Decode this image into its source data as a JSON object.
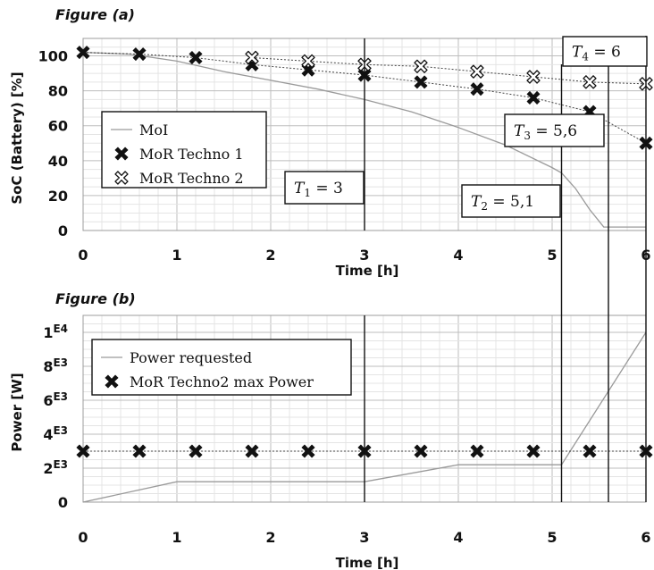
{
  "chart_data": [
    {
      "type": "line",
      "title": "Figure (a)",
      "xlabel": "Time [h]",
      "ylabel": "SoC (Battery) [%]",
      "xlim": [
        0,
        6
      ],
      "ylim": [
        0,
        110
      ],
      "x_ticks": [
        "0",
        "1",
        "2",
        "3",
        "4",
        "5",
        "6"
      ],
      "y_ticks": [
        "0",
        "20",
        "40",
        "60",
        "80",
        "100"
      ],
      "grid": true,
      "legend_position": "middle-left",
      "series": [
        {
          "name": "MoI",
          "style": "line",
          "color": "#9a9a9a",
          "x": [
            0,
            0.5,
            1,
            1.5,
            2,
            2.5,
            3,
            3.5,
            4,
            4.5,
            5,
            5.1,
            5.25,
            5.4,
            5.55,
            5.6,
            6
          ],
          "y": [
            102,
            101,
            97,
            91,
            86,
            81,
            75,
            68,
            59,
            49,
            36,
            33,
            24,
            12,
            2,
            2,
            2
          ]
        },
        {
          "name": "MoR Techno 1",
          "style": "marker",
          "marker": "filled-x",
          "color": "#111111",
          "x": [
            0,
            0.6,
            1.2,
            1.8,
            2.4,
            3.0,
            3.6,
            4.2,
            4.8,
            5.4,
            6.0
          ],
          "y": [
            102,
            101,
            99,
            95,
            92,
            89,
            85,
            81,
            76,
            68,
            50
          ]
        },
        {
          "name": "MoR Techno 2",
          "style": "marker",
          "marker": "hollow-x",
          "color": "#111111",
          "x": [
            1.8,
            2.4,
            3.0,
            3.6,
            4.2,
            4.8,
            5.4,
            6.0
          ],
          "y": [
            99,
            97,
            95,
            94,
            91,
            88,
            85,
            84
          ]
        }
      ],
      "vlines": [
        3,
        5.1,
        5.6,
        6
      ],
      "annotations": [
        {
          "var": "T",
          "sub": "1",
          "rest": " = 3",
          "x": 3
        },
        {
          "var": "T",
          "sub": "2",
          "rest": " = 5,1",
          "x": 5.1
        },
        {
          "var": "T",
          "sub": "3",
          "rest": " = 5,6",
          "x": 5.6
        },
        {
          "var": "T",
          "sub": "4",
          "rest": " = 6",
          "x": 6
        }
      ]
    },
    {
      "type": "line",
      "title": "Figure (b)",
      "xlabel": "Time [h]",
      "ylabel": "Power [W]",
      "xlim": [
        0,
        6
      ],
      "ylim": [
        0,
        11000
      ],
      "x_ticks": [
        "0",
        "1",
        "2",
        "3",
        "4",
        "5",
        "6"
      ],
      "y_ticks": [
        {
          "base": "0",
          "exp": ""
        },
        {
          "base": "2",
          "exp": "E3"
        },
        {
          "base": "4",
          "exp": "E3"
        },
        {
          "base": "6",
          "exp": "E3"
        },
        {
          "base": "8",
          "exp": "E3"
        },
        {
          "base": "1",
          "exp": "E4"
        }
      ],
      "grid": true,
      "legend_position": "top-left",
      "series": [
        {
          "name": "Power requested",
          "style": "line",
          "color": "#9a9a9a",
          "x": [
            0,
            1,
            3,
            4,
            5.1,
            6
          ],
          "y": [
            0,
            1200,
            1200,
            2200,
            2200,
            10000
          ]
        },
        {
          "name": "MoR Techno2 max Power",
          "style": "marker",
          "marker": "filled-x",
          "color": "#111111",
          "x": [
            0,
            0.6,
            1.2,
            1.8,
            2.4,
            3.0,
            3.6,
            4.2,
            4.8,
            5.4,
            6.0
          ],
          "y": [
            3000,
            3000,
            3000,
            3000,
            3000,
            3000,
            3000,
            3000,
            3000,
            3000,
            3000
          ]
        }
      ],
      "vlines": [
        3,
        5.1,
        5.6,
        6
      ]
    }
  ]
}
